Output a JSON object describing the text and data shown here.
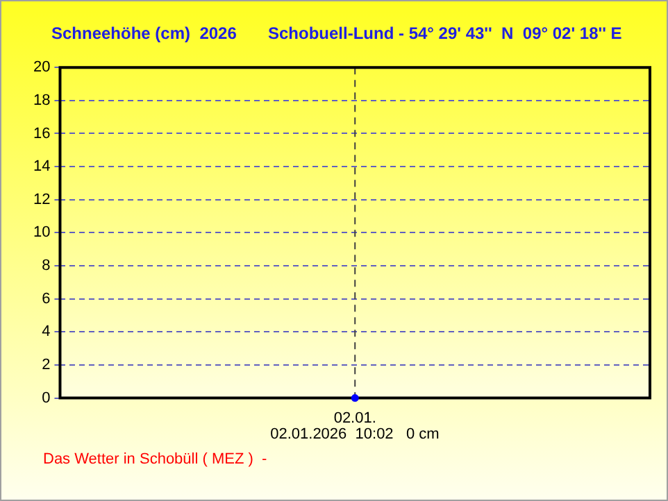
{
  "chart_data": {
    "type": "line",
    "title": "Schneehöhe (cm)  2026",
    "subtitle": "Schobuell-Lund - 54° 29' 43''  N  09° 02' 18'' E",
    "categories": [
      "02.01."
    ],
    "series": [
      {
        "color": "#0000ff",
        "values": [
          0
        ]
      }
    ],
    "ylim": [
      0,
      20
    ],
    "yticks": [
      0,
      2,
      4,
      6,
      8,
      10,
      12,
      14,
      16,
      18,
      20
    ],
    "grid": "y",
    "marker": "circle",
    "ref_lines": [
      {
        "axis": "x",
        "value": "02.01.",
        "color": "#404040",
        "line_style": "dashed"
      }
    ],
    "annotations": [
      "02.01.2026  10:02   0 cm",
      "Das Wetter in Schobüll ( MEZ )  -"
    ]
  }
}
